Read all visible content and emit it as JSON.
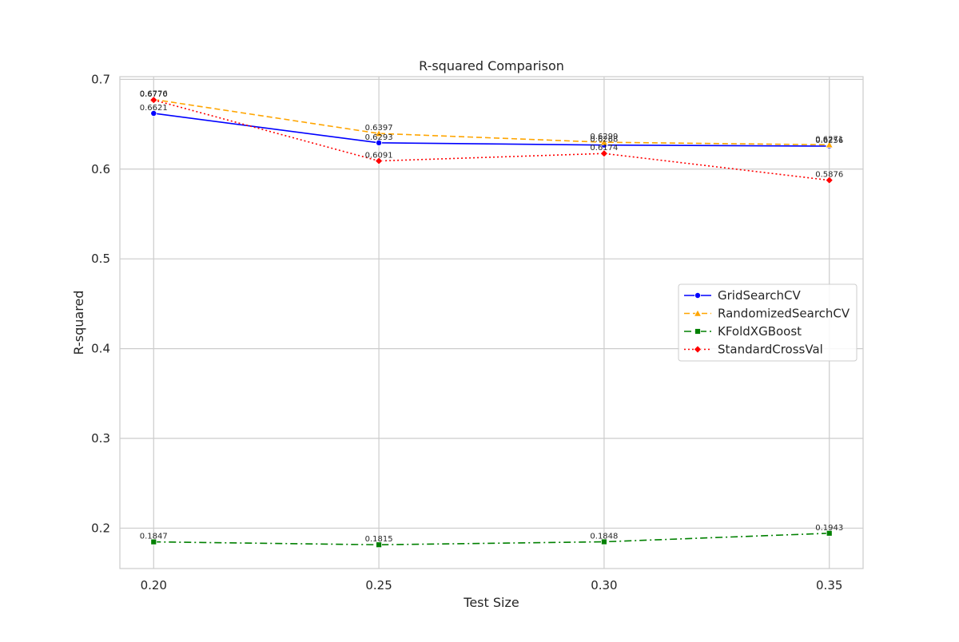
{
  "chart_data": {
    "type": "line",
    "title": "R-squared Comparison",
    "xlabel": "Test Size",
    "ylabel": "R-squared",
    "x": [
      0.2,
      0.25,
      0.3,
      0.35
    ],
    "x_tick_labels": [
      "0.20",
      "0.25",
      "0.30",
      "0.35"
    ],
    "xlim": [
      0.1925,
      0.3575
    ],
    "ylim": [
      0.155,
      0.703
    ],
    "y_ticks": [
      0.2,
      0.3,
      0.4,
      0.5,
      0.6,
      0.7
    ],
    "y_tick_labels": [
      "0.2",
      "0.3",
      "0.4",
      "0.5",
      "0.6",
      "0.7"
    ],
    "grid": true,
    "legend_position": "center-right",
    "series": [
      {
        "name": "GridSearchCV",
        "values": [
          0.6621,
          0.6293,
          0.6268,
          0.6256
        ],
        "value_labels": [
          "0.6621",
          "0.6293",
          "0.6268",
          "0.6256"
        ],
        "color": "#0000ff",
        "line_style": "solid",
        "marker": "circle"
      },
      {
        "name": "RandomizedSearchCV",
        "values": [
          0.6776,
          0.6397,
          0.6299,
          0.6271
        ],
        "value_labels": [
          "0.6776",
          "0.6397",
          "0.6299",
          "0.6271"
        ],
        "color": "#ffa500",
        "line_style": "dashed",
        "marker": "triangle"
      },
      {
        "name": "KFoldXGBoost",
        "values": [
          0.1847,
          0.1815,
          0.1848,
          0.1943
        ],
        "value_labels": [
          "0.1847",
          "0.1815",
          "0.1848",
          "0.1943"
        ],
        "color": "#008000",
        "line_style": "dashdot",
        "marker": "square"
      },
      {
        "name": "StandardCrossVal",
        "values": [
          0.677,
          0.6091,
          0.6174,
          0.5876
        ],
        "value_labels": [
          "0.6770",
          "0.6091",
          "0.6174",
          "0.5876"
        ],
        "color": "#ff0000",
        "line_style": "dotted",
        "marker": "diamond"
      }
    ]
  }
}
